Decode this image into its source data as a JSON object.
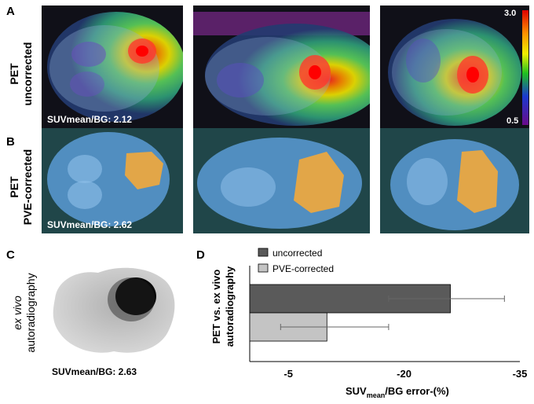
{
  "panels": {
    "a": {
      "letter": "A",
      "row_label_line1": "PET",
      "row_label_line2": "uncorrected",
      "suv_text": "SUVmean/BG:  2.12",
      "colorbar_max": "3.0",
      "colorbar_min": "0.5"
    },
    "b": {
      "letter": "B",
      "row_label_line1": "PET",
      "row_label_line2": "PVE-corrected",
      "suv_text": "SUVmean/BG:  2.62"
    },
    "c": {
      "letter": "C",
      "label_line1": "ex vivo",
      "label_line2": "autoradiography",
      "suv_text": "SUVmean/BG:  2.63"
    },
    "d": {
      "letter": "D",
      "ylabel_line1": "PET vs. ex vivo",
      "ylabel_line2": "autoradiography"
    }
  },
  "colors": {
    "uncorrected_bar": "#5a5a5a",
    "pve_bar": "#c4c4c4",
    "roi_orange": "#f2a93b",
    "overlay_blue": "#5b9bd5"
  },
  "chart_data": {
    "type": "bar",
    "orientation": "horizontal",
    "series": [
      {
        "name": "uncorrected",
        "value": -26,
        "error_low": -18,
        "error_high": -33
      },
      {
        "name": "PVE-corrected",
        "value": -10,
        "error_low": -4,
        "error_high": -18
      }
    ],
    "xlabel_main": "SUV",
    "xlabel_sub": "mean",
    "xlabel_rest": "/BG error-(%)",
    "x_ticks": [
      "-5",
      "-20",
      "-35"
    ],
    "x_tick_values": [
      -5,
      -20,
      -35
    ],
    "xlim": [
      0,
      -35
    ],
    "legend_placement": "top-left",
    "grid": false
  }
}
